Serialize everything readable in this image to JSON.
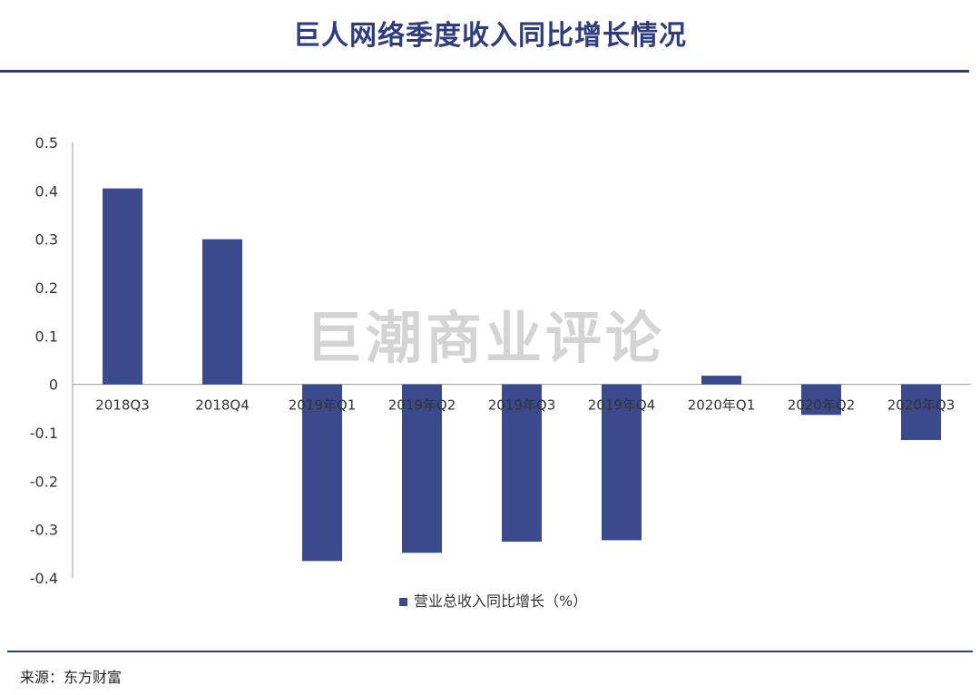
{
  "page": {
    "title": "巨人网络季度收入同比增长情况",
    "watermark": "巨潮商业评论",
    "source": "来源：东方财富"
  },
  "colors": {
    "bar": "#3a4a8c",
    "accent": "#2f3d80",
    "axis": "#999999"
  },
  "chart_data": {
    "type": "bar",
    "categories": [
      "2018Q3",
      "2018Q4",
      "2019年Q1",
      "2019年Q2",
      "2019年Q3",
      "2019年Q4",
      "2020年Q1",
      "2020年Q2",
      "2020年Q3"
    ],
    "series": [
      {
        "name": "营业总收入同比增长（%）",
        "values": [
          0.405,
          0.3,
          -0.365,
          -0.348,
          -0.325,
          -0.322,
          0.018,
          -0.063,
          -0.115
        ]
      }
    ],
    "ylim": [
      -0.4,
      0.5
    ],
    "yticks": [
      0.5,
      0.4,
      0.3,
      0.2,
      0.1,
      0,
      -0.1,
      -0.2,
      -0.3,
      -0.4
    ],
    "ytick_labels": [
      "0.5",
      "0.4",
      "0.3",
      "0.2",
      "0.1",
      "0",
      "-0.1",
      "-0.2",
      "-0.3",
      "-0.4"
    ],
    "grid": false,
    "legend": "bottom-center"
  }
}
